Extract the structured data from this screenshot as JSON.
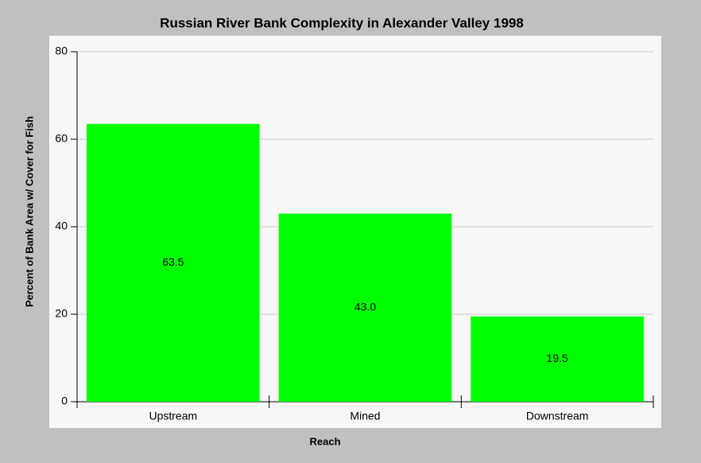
{
  "chart_data": {
    "type": "bar",
    "title": "Russian River Bank Complexity in Alexander Valley 1998",
    "x_label": "Reach",
    "y_label": "Percent of Bank Area w/ Cover for Fish",
    "categories": [
      "Upstream",
      "Mined",
      "Downstream"
    ],
    "values": [
      63.5,
      43.0,
      19.5
    ],
    "value_labels": [
      "63.5",
      "43.0",
      "19.5"
    ],
    "color": "#00ff00",
    "ylim": [
      0,
      80
    ],
    "yticks": [
      0,
      20,
      40,
      60,
      80
    ],
    "grid": true
  }
}
